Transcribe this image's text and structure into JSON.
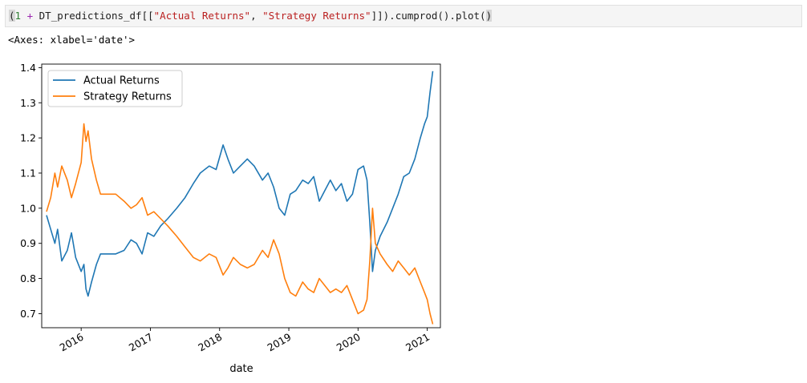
{
  "code_cell": {
    "tokens": [
      {
        "text": "(",
        "cls": "tok-sel"
      },
      {
        "text": "1",
        "cls": "tok-num"
      },
      {
        "text": " ",
        "cls": ""
      },
      {
        "text": "+",
        "cls": "tok-op"
      },
      {
        "text": " DT_predictions_df[[",
        "cls": ""
      },
      {
        "text": "\"Actual Returns\"",
        "cls": "tok-str"
      },
      {
        "text": ", ",
        "cls": ""
      },
      {
        "text": "\"Strategy Returns\"",
        "cls": "tok-str"
      },
      {
        "text": "]]).cumprod().plot(",
        "cls": ""
      },
      {
        "text": ")",
        "cls": "tok-sel"
      }
    ]
  },
  "output": {
    "repr": "<Axes: xlabel='date'>"
  },
  "chart_data": {
    "type": "line",
    "title": "",
    "xlabel": "date",
    "ylabel": "",
    "ylim": [
      0.66,
      1.41
    ],
    "xlim": [
      2015.43,
      2021.19
    ],
    "yticks": [
      0.7,
      0.8,
      0.9,
      1.0,
      1.1,
      1.2,
      1.3,
      1.4
    ],
    "xticks": [
      2016,
      2017,
      2018,
      2019,
      2020,
      2021
    ],
    "xtick_labels": [
      "2016",
      "2017",
      "2018",
      "2019",
      "2020",
      "2021"
    ],
    "grid": false,
    "legend": "upper-left",
    "series": [
      {
        "name": "Actual Returns",
        "color": "#1f77b4",
        "points": [
          [
            2015.5,
            0.98
          ],
          [
            2015.56,
            0.94
          ],
          [
            2015.62,
            0.9
          ],
          [
            2015.66,
            0.94
          ],
          [
            2015.72,
            0.85
          ],
          [
            2015.8,
            0.88
          ],
          [
            2015.86,
            0.93
          ],
          [
            2015.92,
            0.86
          ],
          [
            2016.0,
            0.82
          ],
          [
            2016.04,
            0.84
          ],
          [
            2016.07,
            0.77
          ],
          [
            2016.1,
            0.75
          ],
          [
            2016.15,
            0.79
          ],
          [
            2016.22,
            0.84
          ],
          [
            2016.28,
            0.87
          ],
          [
            2016.5,
            0.87
          ],
          [
            2016.62,
            0.88
          ],
          [
            2016.72,
            0.91
          ],
          [
            2016.8,
            0.9
          ],
          [
            2016.88,
            0.87
          ],
          [
            2016.96,
            0.93
          ],
          [
            2017.05,
            0.92
          ],
          [
            2017.15,
            0.95
          ],
          [
            2017.25,
            0.97
          ],
          [
            2017.38,
            1.0
          ],
          [
            2017.5,
            1.03
          ],
          [
            2017.62,
            1.07
          ],
          [
            2017.72,
            1.1
          ],
          [
            2017.85,
            1.12
          ],
          [
            2017.95,
            1.11
          ],
          [
            2018.05,
            1.18
          ],
          [
            2018.12,
            1.14
          ],
          [
            2018.2,
            1.1
          ],
          [
            2018.3,
            1.12
          ],
          [
            2018.4,
            1.14
          ],
          [
            2018.5,
            1.12
          ],
          [
            2018.62,
            1.08
          ],
          [
            2018.7,
            1.1
          ],
          [
            2018.78,
            1.06
          ],
          [
            2018.86,
            1.0
          ],
          [
            2018.94,
            0.98
          ],
          [
            2019.02,
            1.04
          ],
          [
            2019.1,
            1.05
          ],
          [
            2019.2,
            1.08
          ],
          [
            2019.28,
            1.07
          ],
          [
            2019.36,
            1.09
          ],
          [
            2019.44,
            1.02
          ],
          [
            2019.52,
            1.05
          ],
          [
            2019.6,
            1.08
          ],
          [
            2019.68,
            1.05
          ],
          [
            2019.76,
            1.07
          ],
          [
            2019.84,
            1.02
          ],
          [
            2019.92,
            1.04
          ],
          [
            2020.0,
            1.11
          ],
          [
            2020.08,
            1.12
          ],
          [
            2020.13,
            1.08
          ],
          [
            2020.17,
            0.96
          ],
          [
            2020.21,
            0.82
          ],
          [
            2020.25,
            0.88
          ],
          [
            2020.32,
            0.92
          ],
          [
            2020.42,
            0.96
          ],
          [
            2020.5,
            1.0
          ],
          [
            2020.58,
            1.04
          ],
          [
            2020.66,
            1.09
          ],
          [
            2020.74,
            1.1
          ],
          [
            2020.82,
            1.14
          ],
          [
            2020.9,
            1.2
          ],
          [
            2020.96,
            1.24
          ],
          [
            2021.0,
            1.26
          ],
          [
            2021.04,
            1.33
          ],
          [
            2021.08,
            1.39
          ]
        ]
      },
      {
        "name": "Strategy Returns",
        "color": "#ff7f0e",
        "points": [
          [
            2015.5,
            0.99
          ],
          [
            2015.56,
            1.03
          ],
          [
            2015.62,
            1.1
          ],
          [
            2015.66,
            1.06
          ],
          [
            2015.72,
            1.12
          ],
          [
            2015.8,
            1.08
          ],
          [
            2015.86,
            1.03
          ],
          [
            2015.92,
            1.07
          ],
          [
            2016.0,
            1.13
          ],
          [
            2016.04,
            1.24
          ],
          [
            2016.07,
            1.19
          ],
          [
            2016.1,
            1.22
          ],
          [
            2016.15,
            1.14
          ],
          [
            2016.22,
            1.08
          ],
          [
            2016.28,
            1.04
          ],
          [
            2016.5,
            1.04
          ],
          [
            2016.62,
            1.02
          ],
          [
            2016.72,
            1.0
          ],
          [
            2016.8,
            1.01
          ],
          [
            2016.88,
            1.03
          ],
          [
            2016.96,
            0.98
          ],
          [
            2017.05,
            0.99
          ],
          [
            2017.15,
            0.97
          ],
          [
            2017.25,
            0.95
          ],
          [
            2017.38,
            0.92
          ],
          [
            2017.5,
            0.89
          ],
          [
            2017.62,
            0.86
          ],
          [
            2017.72,
            0.85
          ],
          [
            2017.85,
            0.87
          ],
          [
            2017.95,
            0.86
          ],
          [
            2018.05,
            0.81
          ],
          [
            2018.12,
            0.83
          ],
          [
            2018.2,
            0.86
          ],
          [
            2018.3,
            0.84
          ],
          [
            2018.4,
            0.83
          ],
          [
            2018.5,
            0.84
          ],
          [
            2018.62,
            0.88
          ],
          [
            2018.7,
            0.86
          ],
          [
            2018.78,
            0.91
          ],
          [
            2018.86,
            0.87
          ],
          [
            2018.94,
            0.8
          ],
          [
            2019.02,
            0.76
          ],
          [
            2019.1,
            0.75
          ],
          [
            2019.2,
            0.79
          ],
          [
            2019.28,
            0.77
          ],
          [
            2019.36,
            0.76
          ],
          [
            2019.44,
            0.8
          ],
          [
            2019.52,
            0.78
          ],
          [
            2019.6,
            0.76
          ],
          [
            2019.68,
            0.77
          ],
          [
            2019.76,
            0.76
          ],
          [
            2019.84,
            0.78
          ],
          [
            2019.92,
            0.74
          ],
          [
            2020.0,
            0.7
          ],
          [
            2020.08,
            0.71
          ],
          [
            2020.13,
            0.74
          ],
          [
            2020.17,
            0.85
          ],
          [
            2020.21,
            1.0
          ],
          [
            2020.25,
            0.9
          ],
          [
            2020.32,
            0.87
          ],
          [
            2020.42,
            0.84
          ],
          [
            2020.5,
            0.82
          ],
          [
            2020.58,
            0.85
          ],
          [
            2020.66,
            0.83
          ],
          [
            2020.74,
            0.81
          ],
          [
            2020.82,
            0.83
          ],
          [
            2020.9,
            0.79
          ],
          [
            2020.96,
            0.76
          ],
          [
            2021.0,
            0.74
          ],
          [
            2021.04,
            0.7
          ],
          [
            2021.08,
            0.67
          ]
        ]
      }
    ]
  }
}
